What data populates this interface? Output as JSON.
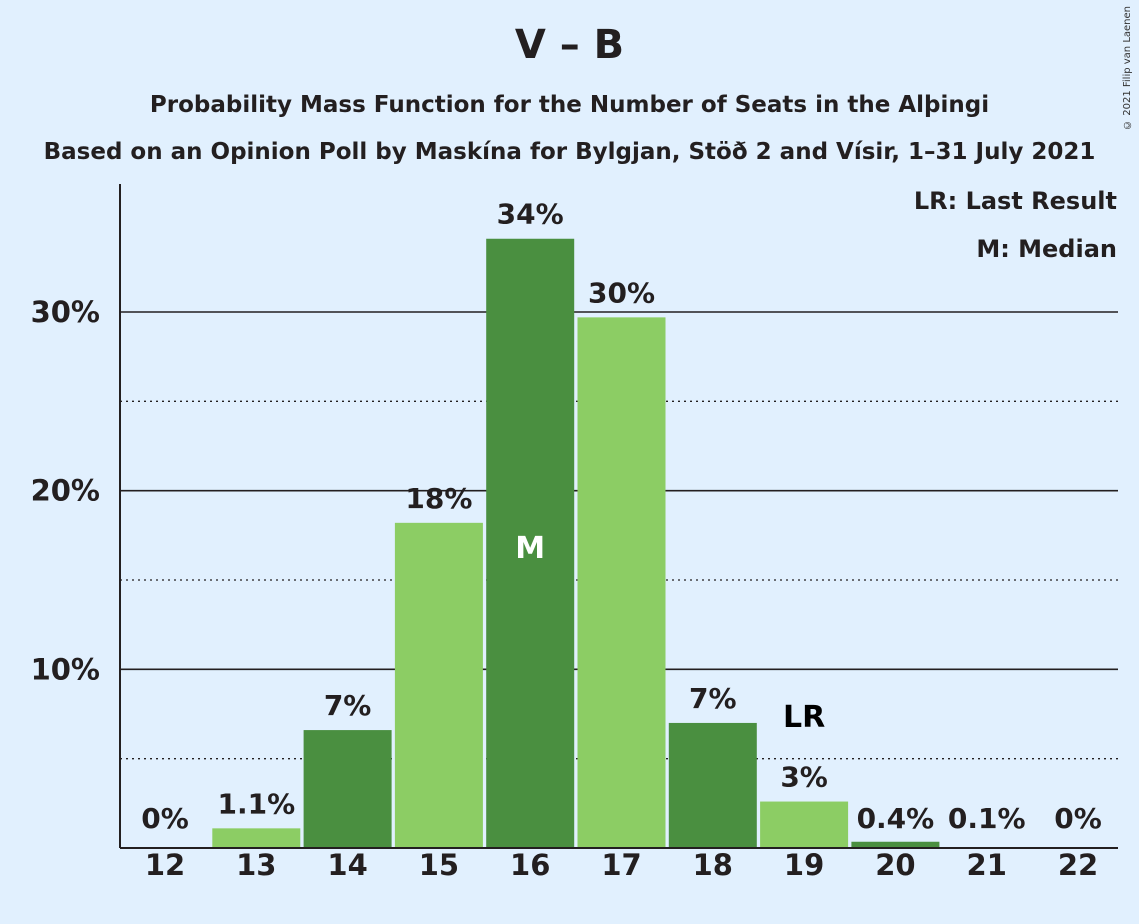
{
  "chart_data": {
    "type": "bar",
    "title": "V – B",
    "subtitle": "Probability Mass Function for the Number of Seats in the Alþingi",
    "subtitle2": "Based on an Opinion Poll by Maskína for Bylgjan, Stöð 2 and Vísir, 1–31 July 2021",
    "copyright": "© 2021 Filip van Laenen",
    "categories": [
      "12",
      "13",
      "14",
      "15",
      "16",
      "17",
      "18",
      "19",
      "20",
      "21",
      "22"
    ],
    "values": [
      0,
      1.1,
      6.6,
      18.2,
      34.1,
      29.7,
      7.0,
      2.6,
      0.35,
      0.05,
      0
    ],
    "data_labels": [
      "0%",
      "1.1%",
      "7%",
      "18%",
      "34%",
      "30%",
      "7%",
      "3%",
      "0.4%",
      "0.1%",
      "0%"
    ],
    "bar_colors": [
      "#8ccd64",
      "#8ccd64",
      "#4a8f40",
      "#8ccd64",
      "#4a8f40",
      "#8ccd64",
      "#4a8f40",
      "#8ccd64",
      "#4a8f40",
      "#8ccd64",
      "#4a8f40"
    ],
    "y_ticks": [
      "10%",
      "20%",
      "30%"
    ],
    "y_tick_values": [
      10,
      20,
      30
    ],
    "y_minor_values": [
      5,
      15,
      25
    ],
    "ylim": [
      0,
      37
    ],
    "median": {
      "category": "16",
      "label": "M"
    },
    "last_result": {
      "category": "19",
      "label": "LR"
    },
    "legend": [
      "LR: Last Result",
      "M: Median"
    ],
    "legend_position": "top-right",
    "grid": true
  }
}
